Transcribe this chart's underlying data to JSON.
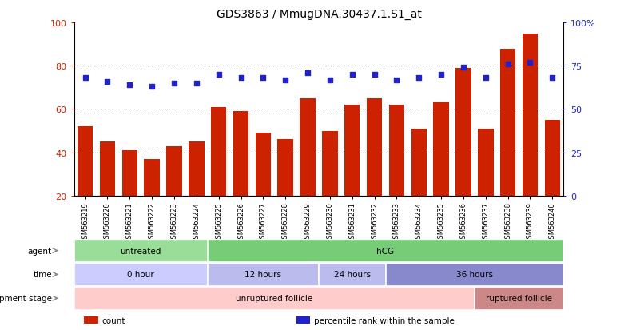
{
  "title": "GDS3863 / MmugDNA.30437.1.S1_at",
  "samples": [
    "GSM563219",
    "GSM563220",
    "GSM563221",
    "GSM563222",
    "GSM563223",
    "GSM563224",
    "GSM563225",
    "GSM563226",
    "GSM563227",
    "GSM563228",
    "GSM563229",
    "GSM563230",
    "GSM563231",
    "GSM563232",
    "GSM563233",
    "GSM563234",
    "GSM563235",
    "GSM563236",
    "GSM563237",
    "GSM563238",
    "GSM563239",
    "GSM563240"
  ],
  "counts": [
    52,
    45,
    41,
    37,
    43,
    45,
    61,
    59,
    49,
    46,
    65,
    50,
    62,
    65,
    62,
    51,
    63,
    79,
    51,
    88,
    95,
    55
  ],
  "percentiles": [
    68,
    66,
    64,
    63,
    65,
    65,
    70,
    68,
    68,
    67,
    71,
    67,
    70,
    70,
    67,
    68,
    70,
    74,
    68,
    76,
    77,
    68
  ],
  "bar_color": "#cc2200",
  "dot_color": "#2222cc",
  "ylim_left": [
    20,
    100
  ],
  "ylim_right": [
    0,
    100
  ],
  "yticks_left": [
    20,
    40,
    60,
    80,
    100
  ],
  "ytick_labels_left": [
    "20",
    "40",
    "60",
    "80",
    "100"
  ],
  "yticks_right_vals": [
    0,
    25,
    50,
    75,
    100
  ],
  "ytick_labels_right": [
    "0",
    "25",
    "50",
    "75",
    "100%"
  ],
  "grid_lines": [
    40,
    60,
    80
  ],
  "agent_labels": [
    {
      "text": "untreated",
      "start": 0,
      "end": 5,
      "color": "#99dd99"
    },
    {
      "text": "hCG",
      "start": 6,
      "end": 21,
      "color": "#77cc77"
    }
  ],
  "time_labels": [
    {
      "text": "0 hour",
      "start": 0,
      "end": 5,
      "color": "#ccccff"
    },
    {
      "text": "12 hours",
      "start": 6,
      "end": 10,
      "color": "#bbbbee"
    },
    {
      "text": "24 hours",
      "start": 11,
      "end": 13,
      "color": "#bbbbee"
    },
    {
      "text": "36 hours",
      "start": 14,
      "end": 21,
      "color": "#8888cc"
    }
  ],
  "dev_labels": [
    {
      "text": "unruptured follicle",
      "start": 0,
      "end": 17,
      "color": "#ffcccc"
    },
    {
      "text": "ruptured follicle",
      "start": 18,
      "end": 21,
      "color": "#cc8888"
    }
  ],
  "row_label_texts": [
    "agent",
    "time",
    "development stage"
  ],
  "legend_items": [
    {
      "color": "#cc2200",
      "label": "count"
    },
    {
      "color": "#2222cc",
      "label": "percentile rank within the sample"
    }
  ],
  "bar_width": 0.7,
  "background_color": "#ffffff",
  "xticklabel_area_color": "#dddddd"
}
